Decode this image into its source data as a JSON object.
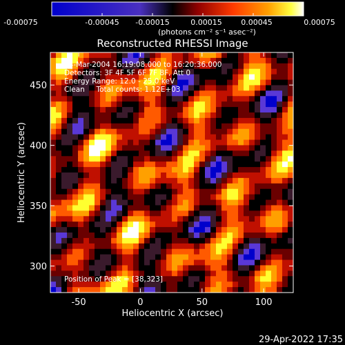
{
  "colorbar": {
    "tick_labels": [
      "-0.00075",
      "-0.00045",
      "-0.00015",
      "0.00015",
      "0.00045",
      "0.00075"
    ],
    "units_label": "(photons cm⁻² s⁻¹ asec⁻²)",
    "range": [
      -0.00075,
      0.00075
    ]
  },
  "chart_data": {
    "type": "heatmap",
    "title": "Reconstructed RHESSI Image",
    "xlabel": "Heliocentric X (arcsec)",
    "ylabel": "Heliocentric Y (arcsec)",
    "xlim": [
      -73,
      124
    ],
    "ylim": [
      278,
      477
    ],
    "x_ticks": [
      -50,
      0,
      50,
      100
    ],
    "y_ticks": [
      300,
      350,
      400,
      450
    ],
    "annotations": [
      "24-Mar-2004 16:19:08.000 to 16:20:36.000",
      "Detectors: 3F 4F 5F 6F 7F 8F, Att 0",
      "Energy Range: 12.0 - 25.0 keV",
      "Clean     Total counts: 1.12E+03"
    ],
    "peak_label": "Position of Peak = [38,323]",
    "peak": [
      38,
      323
    ],
    "colormap": [
      "#0000cc",
      "#5a38d6",
      "#3a1a2c",
      "#000000",
      "#6a0000",
      "#c01000",
      "#ff5a00",
      "#ffa000",
      "#ffff30",
      "#ffffff"
    ],
    "notes": "heatmap cells are a stylized reproduction of the blob pattern; values are approximate"
  },
  "footer": {
    "timestamp": "29-Apr-2022 17:35"
  }
}
